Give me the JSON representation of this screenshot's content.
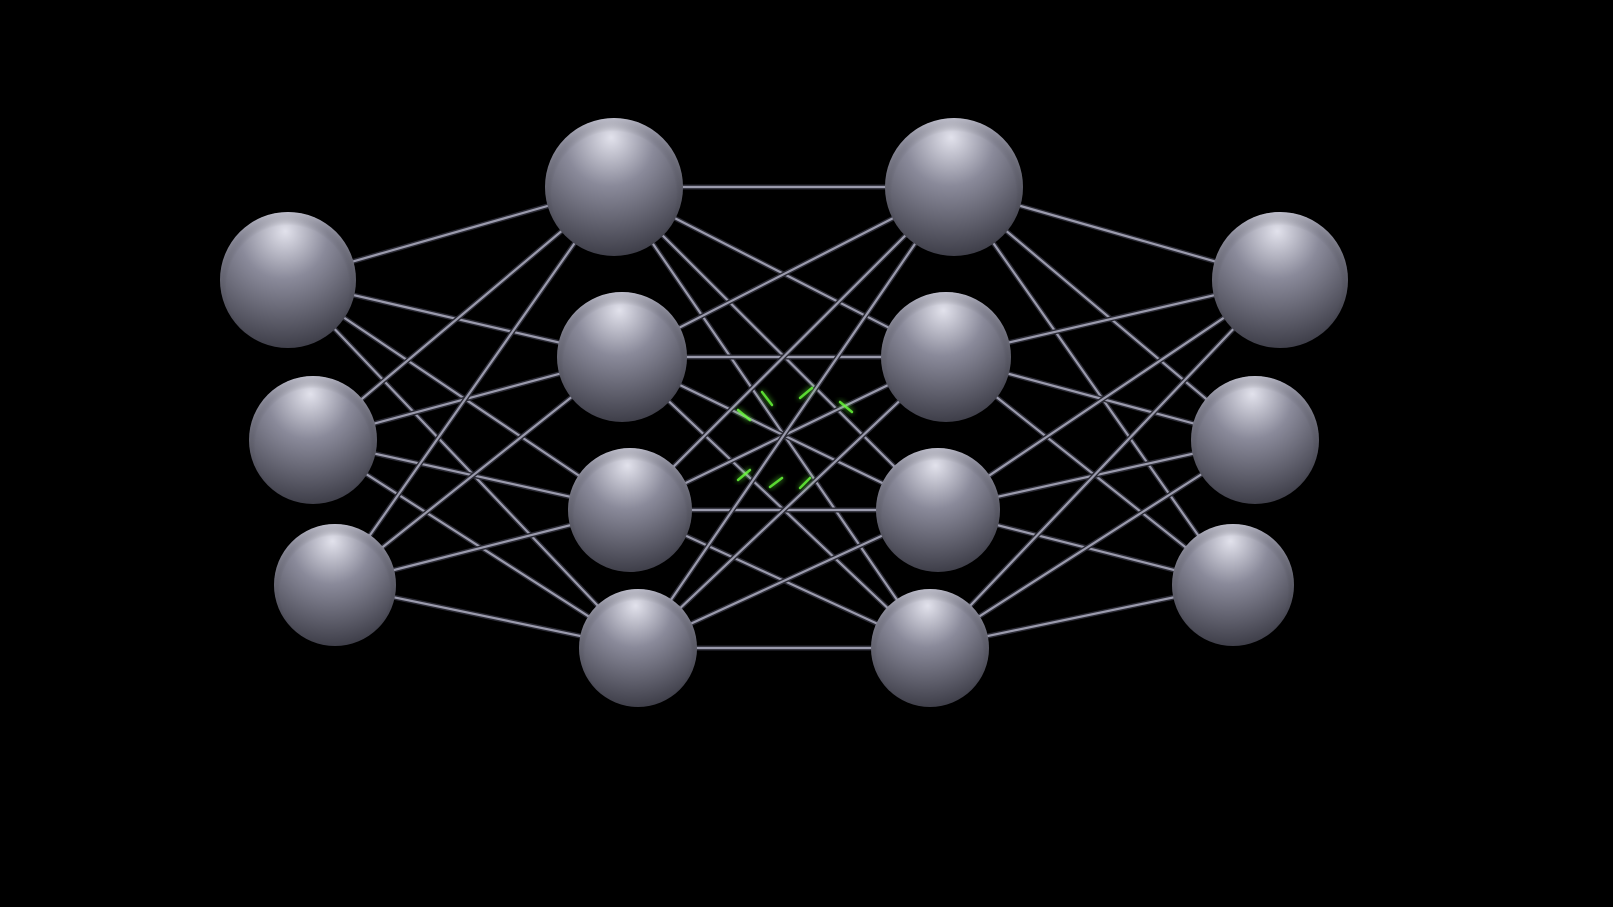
{
  "diagram": {
    "type": "neural-network",
    "background_color": "#000000",
    "node_color": "#8a8a9a",
    "node_highlight_color": "#e2e2ec",
    "node_shadow_color": "#34343e",
    "edge_color": "#9a9aac",
    "accent_glow_color": "#6aff3a",
    "layers": [
      {
        "name": "input-layer",
        "node_count": 3
      },
      {
        "name": "hidden-layer-1",
        "node_count": 4
      },
      {
        "name": "hidden-layer-2",
        "node_count": 4
      },
      {
        "name": "output-layer",
        "node_count": 3
      }
    ],
    "connectivity": "fully-connected"
  }
}
